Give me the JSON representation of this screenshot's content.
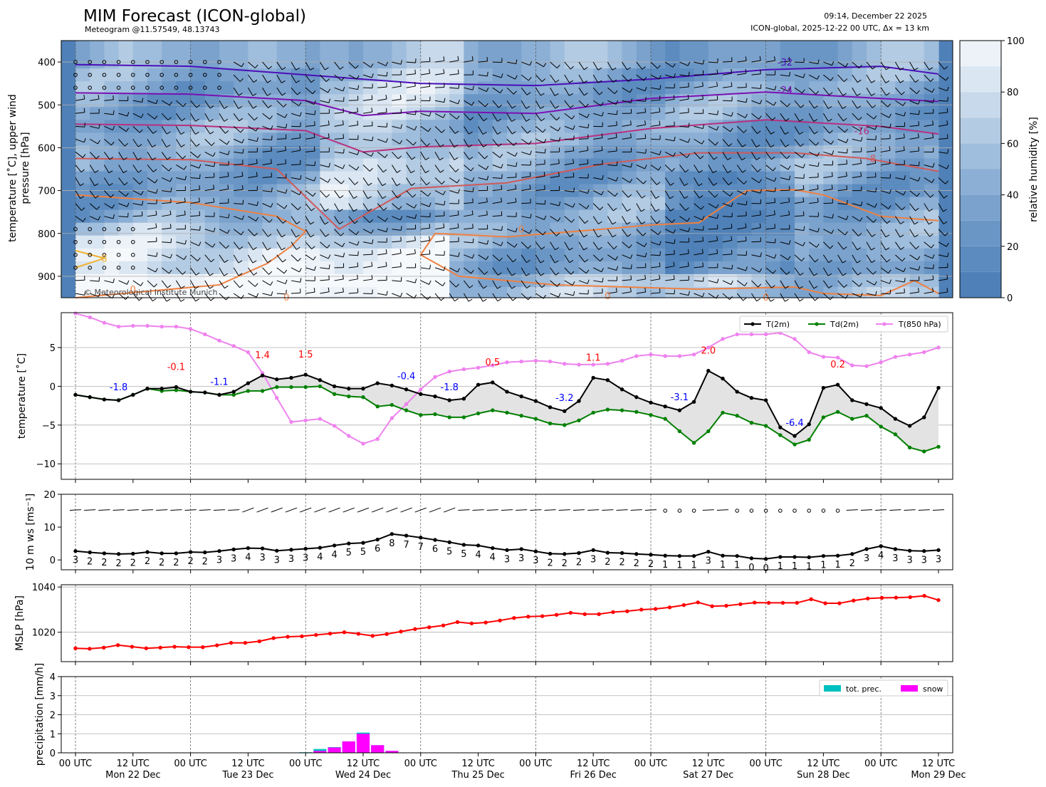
{
  "header": {
    "title": "MIM Forecast (ICON-global)",
    "subtitle": "Meteogram @11.57549, 48.13743",
    "issued": "09:14, December 22 2025",
    "run_info": "ICON-global, 2025-12-22 00 UTC, Δx = 13 km",
    "copyright": "© Meteorological Institute Munich"
  },
  "x_axis": {
    "tick_labels": [
      "00 UTC",
      "12 UTC",
      "00 UTC",
      "12 UTC",
      "00 UTC",
      "12 UTC",
      "00 UTC",
      "12 UTC",
      "00 UTC",
      "12 UTC",
      "00 UTC",
      "12 UTC",
      "00 UTC",
      "12 UTC",
      "00 UTC",
      "12 UTC"
    ],
    "day_labels": [
      "Mon 22 Dec",
      "Tue 23 Dec",
      "Wed 24 Dec",
      "Thu 25 Dec",
      "Fri 26 Dec",
      "Sat 27 Dec",
      "Sun 28 Dec",
      "Mon 29 Dec"
    ]
  },
  "colors": {
    "tmp": "#000000",
    "dew": "#008000",
    "t850": "#ee82ee",
    "mslp": "#ff0000",
    "prec": "#00bfc0",
    "snow": "#ff00ff",
    "warm": "#ff0000",
    "cold": "#0000ff",
    "rh_dark": "#4f81b8",
    "rh_light": "#f4f8fc"
  },
  "chart_data": [
    {
      "type": "heatmap",
      "name": "upper-air",
      "ylabel": "temperature [˚C], upper wind\npressure [hPa]",
      "ylim": [
        950,
        350
      ],
      "yticks": [
        "400",
        "500",
        "600",
        "700",
        "800",
        "900"
      ],
      "colorbar": {
        "label": "relative humidity [%]",
        "ticks": [
          "0",
          "20",
          "40",
          "60",
          "80",
          "100"
        ],
        "range": [
          0,
          100
        ]
      },
      "isotherm_labels": [
        "-32",
        "-24",
        "-16",
        "-8",
        "0",
        "0",
        "0",
        "0",
        "0",
        "8"
      ],
      "isotherms": [
        {
          "label": "-32",
          "color": "#4b0fb8",
          "hours": [
            0,
            24,
            48,
            72,
            96,
            120,
            144,
            168,
            180
          ],
          "p": [
            406,
            410,
            430,
            450,
            455,
            440,
            418,
            410,
            428
          ]
        },
        {
          "label": "-24",
          "color": "#7a10b3",
          "hours": [
            0,
            24,
            48,
            60,
            72,
            96,
            120,
            144,
            168,
            180
          ],
          "p": [
            472,
            475,
            490,
            525,
            515,
            520,
            485,
            470,
            485,
            492
          ]
        },
        {
          "label": "-16",
          "color": "#b8307e",
          "hours": [
            0,
            24,
            48,
            60,
            72,
            96,
            120,
            144,
            168,
            180
          ],
          "p": [
            545,
            548,
            560,
            610,
            598,
            590,
            555,
            535,
            550,
            568
          ]
        },
        {
          "label": "-8",
          "color": "#d05a5a",
          "hours": [
            0,
            24,
            42,
            55,
            70,
            90,
            110,
            130,
            150,
            165,
            180
          ],
          "p": [
            625,
            628,
            650,
            790,
            695,
            682,
            638,
            612,
            612,
            625,
            655
          ]
        }
      ]
    },
    {
      "type": "line",
      "name": "surface-temperature",
      "ylabel": "temperature [˚C]",
      "ylim": [
        -12,
        9.5
      ],
      "yticks": [
        "−10",
        "−5",
        "0",
        "5"
      ],
      "legend": [
        "T(2m)",
        "Td(2m)",
        "T(850 hPa)"
      ],
      "hours_step": 3,
      "series": [
        {
          "name": "T(2m)",
          "values": [
            -1.1,
            -1.4,
            -1.7,
            -1.8,
            -1.1,
            -0.3,
            -0.3,
            -0.1,
            -0.7,
            -0.8,
            -1.1,
            -0.7,
            0.4,
            1.4,
            0.9,
            1.1,
            1.5,
            0.8,
            0.0,
            -0.3,
            -0.3,
            0.4,
            0.1,
            -0.4,
            -1.0,
            -1.3,
            -1.8,
            -1.6,
            0.2,
            0.5,
            -0.7,
            -1.3,
            -1.9,
            -2.7,
            -3.2,
            -1.9,
            1.1,
            0.8,
            -0.4,
            -1.4,
            -2.1,
            -2.6,
            -3.1,
            -2.0,
            2.0,
            1.0,
            -0.7,
            -1.5,
            -1.8,
            -5.3,
            -6.4,
            -4.9,
            -0.2,
            0.2,
            -1.8,
            -2.3,
            -2.8,
            -4.2,
            -5.1,
            -4.0,
            -0.2
          ]
        },
        {
          "name": "Td(2m)",
          "values": [
            -1.1,
            -1.4,
            -1.7,
            -1.8,
            -1.1,
            -0.3,
            -0.6,
            -0.5,
            -0.7,
            -0.8,
            -1.1,
            -1.1,
            -0.6,
            -0.6,
            -0.1,
            -0.1,
            -0.1,
            0.0,
            -1.0,
            -1.3,
            -1.4,
            -2.6,
            -2.4,
            -3.1,
            -3.7,
            -3.6,
            -4.0,
            -4.0,
            -3.5,
            -3.1,
            -3.4,
            -3.8,
            -4.2,
            -4.8,
            -5.0,
            -4.4,
            -3.4,
            -3.0,
            -3.1,
            -3.3,
            -3.7,
            -4.2,
            -5.8,
            -7.3,
            -5.8,
            -3.4,
            -3.8,
            -4.7,
            -5.1,
            -6.3,
            -7.5,
            -6.9,
            -4.0,
            -3.3,
            -4.2,
            -3.8,
            -5.2,
            -6.2,
            -7.9,
            -8.4,
            -7.8
          ]
        },
        {
          "name": "T(850 hPa)",
          "values": [
            9.5,
            8.9,
            8.2,
            7.7,
            7.8,
            7.8,
            7.7,
            7.7,
            7.4,
            6.7,
            5.9,
            5.2,
            4.4,
            1.7,
            -1.5,
            -4.6,
            -4.4,
            -4.2,
            -5.1,
            -6.4,
            -7.4,
            -6.8,
            -4.1,
            -2.3,
            -0.4,
            1.2,
            1.9,
            2.2,
            2.4,
            2.7,
            3.1,
            3.2,
            3.3,
            3.2,
            2.9,
            2.8,
            2.8,
            2.9,
            3.3,
            3.9,
            4.1,
            3.9,
            3.9,
            4.1,
            5.0,
            6.1,
            6.7,
            6.7,
            6.7,
            6.9,
            6.1,
            4.4,
            3.8,
            3.7,
            2.7,
            2.6,
            3.1,
            3.8,
            4.1,
            4.4,
            5.0
          ]
        }
      ],
      "extremes": [
        {
          "hours": 9,
          "label": "-1.8",
          "kind": "min"
        },
        {
          "hours": 21,
          "label": "-0.1",
          "kind": "max"
        },
        {
          "hours": 30,
          "label": "-1.1",
          "kind": "min"
        },
        {
          "hours": 39,
          "label": "1.4",
          "kind": "max"
        },
        {
          "hours": 48,
          "label": "1.5",
          "kind": "max"
        },
        {
          "hours": 69,
          "label": "-0.4",
          "kind": "min"
        },
        {
          "hours": 78,
          "label": "-1.8",
          "kind": "min"
        },
        {
          "hours": 87,
          "label": "0.5",
          "kind": "max"
        },
        {
          "hours": 102,
          "label": "-3.2",
          "kind": "min"
        },
        {
          "hours": 108,
          "label": "1.1",
          "kind": "max"
        },
        {
          "hours": 126,
          "label": "-3.1",
          "kind": "min"
        },
        {
          "hours": 132,
          "label": "2.0",
          "kind": "max"
        },
        {
          "hours": 150,
          "label": "-6.4",
          "kind": "min"
        },
        {
          "hours": 159,
          "label": "0.2",
          "kind": "max"
        }
      ]
    },
    {
      "type": "line",
      "name": "wind-10m",
      "ylabel": "10 m ws [ms⁻¹]",
      "ylim": [
        -3,
        20
      ],
      "yticks": [
        "0",
        "10",
        "20"
      ],
      "series": [
        {
          "name": "10 m ws",
          "values": [
            2.7,
            2.3,
            2.0,
            1.8,
            1.9,
            2.4,
            2.0,
            2.0,
            2.4,
            2.3,
            2.7,
            3.2,
            3.6,
            3.5,
            2.8,
            3.1,
            3.4,
            3.7,
            4.4,
            5.0,
            5.2,
            6.2,
            7.9,
            7.4,
            6.8,
            6.1,
            5.4,
            4.6,
            4.4,
            3.6,
            3.0,
            3.3,
            2.6,
            1.9,
            1.8,
            2.1,
            3.0,
            2.2,
            2.1,
            1.8,
            1.6,
            1.3,
            1.2,
            1.2,
            2.5,
            1.3,
            1.2,
            0.5,
            0.3,
            0.9,
            0.9,
            0.8,
            1.2,
            1.3,
            1.8,
            3.3,
            4.2,
            3.3,
            2.8,
            2.7,
            3.0
          ]
        }
      ],
      "labels": [
        "3",
        "2",
        "2",
        "2",
        "2",
        "2",
        "2",
        "2",
        "2",
        "2",
        "3",
        "3",
        "4",
        "3",
        "3",
        "3",
        "3",
        "4",
        "4",
        "5",
        "5",
        "6",
        "8",
        "7",
        "7",
        "6",
        "5",
        "5",
        "4",
        "4",
        "3",
        "3",
        "3",
        "2",
        "2",
        "2",
        "3",
        "2",
        "2",
        "2",
        "2",
        "1",
        "1",
        "1",
        "3",
        "1",
        "1",
        "0",
        "0",
        "1",
        "1",
        "1",
        "1",
        "1",
        "2",
        "3",
        "4",
        "3",
        "3",
        "3",
        "3"
      ]
    },
    {
      "type": "line",
      "name": "mslp",
      "ylabel": "MSLP [hPa]",
      "ylim": [
        1007,
        1041
      ],
      "yticks": [
        "1020",
        "1040"
      ],
      "series": [
        {
          "name": "MSLP",
          "values": [
            1012.9,
            1012.7,
            1013.2,
            1014.3,
            1013.6,
            1012.9,
            1013.2,
            1013.6,
            1013.4,
            1013.4,
            1014.2,
            1015.3,
            1015.3,
            1016.0,
            1017.4,
            1018.0,
            1018.2,
            1018.8,
            1019.4,
            1020.0,
            1019.3,
            1018.4,
            1019.2,
            1020.3,
            1021.4,
            1022.2,
            1023.0,
            1024.5,
            1023.9,
            1024.3,
            1025.2,
            1026.3,
            1026.9,
            1027.1,
            1027.7,
            1028.6,
            1028.0,
            1028.0,
            1028.9,
            1029.3,
            1030.0,
            1030.3,
            1031.0,
            1032.0,
            1033.2,
            1031.5,
            1031.7,
            1032.4,
            1033.1,
            1033.0,
            1033.0,
            1033.0,
            1034.6,
            1032.8,
            1032.8,
            1034.0,
            1034.9,
            1035.2,
            1035.3,
            1035.5,
            1036.1,
            1034.2
          ]
        }
      ]
    },
    {
      "type": "bar",
      "name": "precipitation",
      "ylabel": "precipitation [mm/h]",
      "ylim": [
        0,
        4
      ],
      "yticks": [
        "0",
        "1",
        "2",
        "3",
        "4"
      ],
      "legend": [
        "tot. prec.",
        "snow"
      ],
      "bars": [
        {
          "hours": 42,
          "total": 0.02,
          "snow": 0.0
        },
        {
          "hours": 48,
          "total": 0.03,
          "snow": 0.0
        },
        {
          "hours": 51,
          "total": 0.2,
          "snow": 0.1
        },
        {
          "hours": 54,
          "total": 0.3,
          "snow": 0.28
        },
        {
          "hours": 57,
          "total": 0.6,
          "snow": 0.6
        },
        {
          "hours": 60,
          "total": 1.06,
          "snow": 1.0
        },
        {
          "hours": 63,
          "total": 0.4,
          "snow": 0.4
        },
        {
          "hours": 66,
          "total": 0.1,
          "snow": 0.1
        }
      ]
    }
  ]
}
